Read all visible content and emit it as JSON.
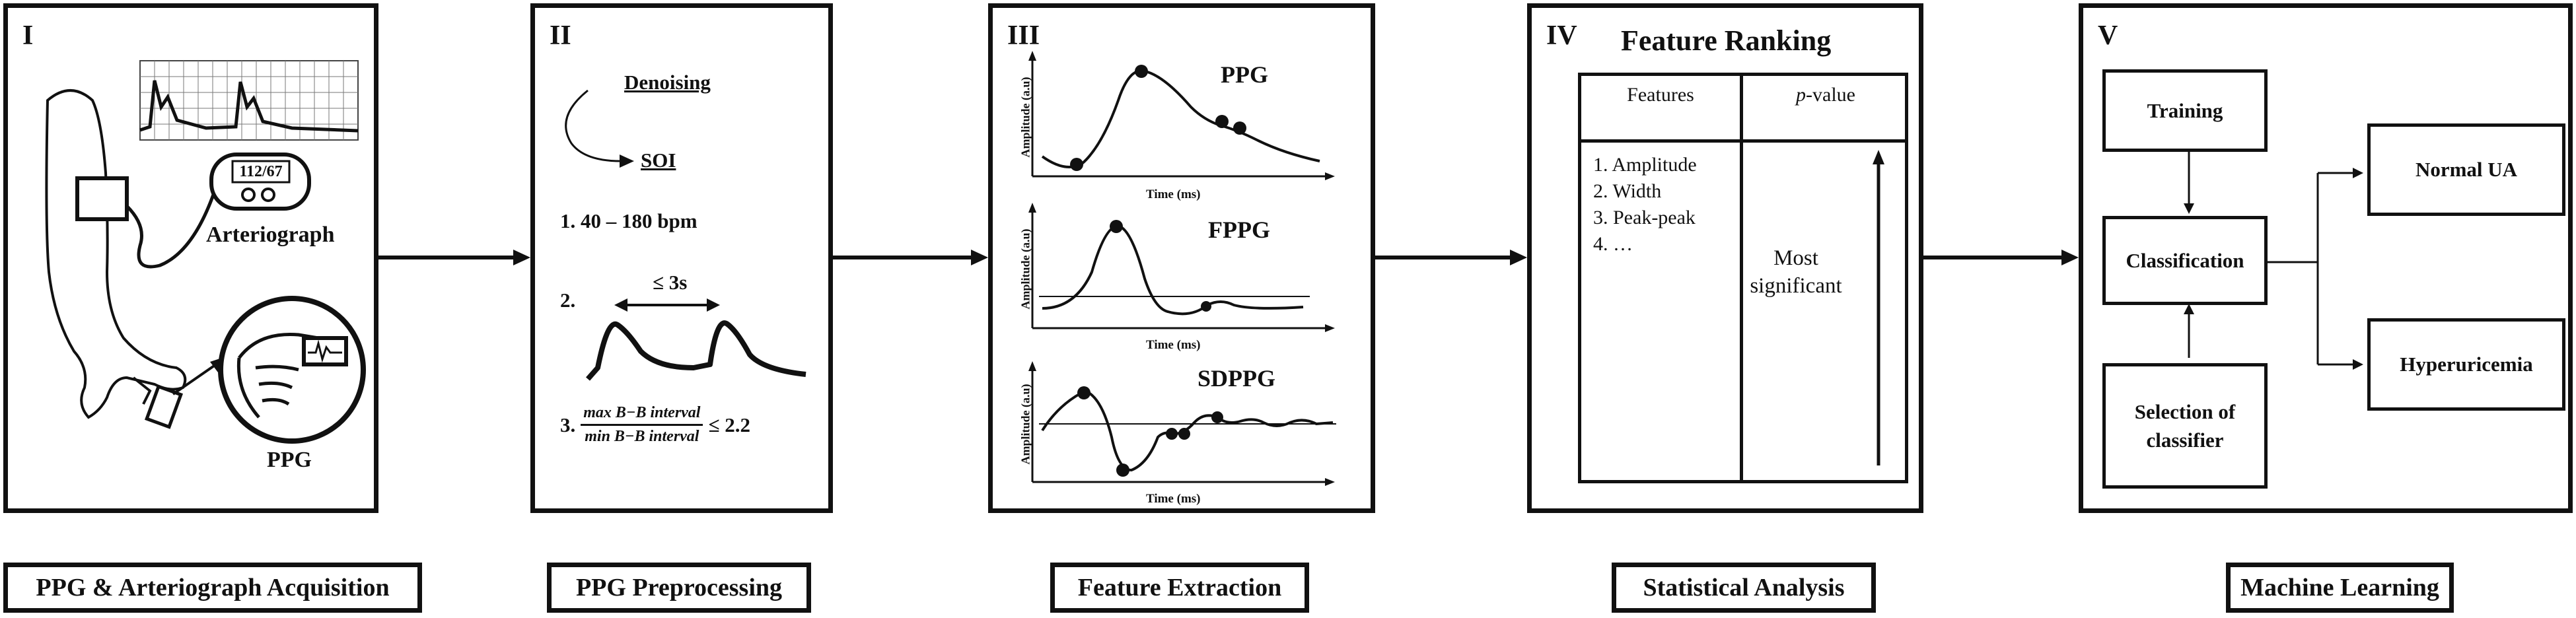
{
  "panels": [
    {
      "numeral": "I",
      "device_readout": "112/67",
      "device_label": "Arteriograph",
      "sensor_label": "PPG",
      "bottom_label": "PPG & Arteriograph Acquisition"
    },
    {
      "numeral": "II",
      "denoising": "Denoising",
      "soi": "SOI",
      "criterion_1": "1. 40 – 180 bpm",
      "criterion_2_num": "2.",
      "criterion_2_label": "≤ 3s",
      "criterion_3_num": "3.",
      "criterion_3_numerator": "max B−B interval",
      "criterion_3_denominator": "min B−B interval",
      "criterion_3_bound": "≤ 2.2",
      "bottom_label": "PPG Preprocessing"
    },
    {
      "numeral": "III",
      "plots": [
        {
          "title": "PPG",
          "ylabel": "Amplitude (a.u)",
          "xlabel": "Time (ms)"
        },
        {
          "title": "FPPG",
          "ylabel": "Amplitude (a.u)",
          "xlabel": "Time (ms)"
        },
        {
          "title": "SDPPG",
          "ylabel": "Amplitude (a.u)",
          "xlabel": "Time (ms)"
        }
      ],
      "bottom_label": "Feature Extraction"
    },
    {
      "numeral": "IV",
      "title": "Feature Ranking",
      "table": {
        "col_features": "Features",
        "col_pvalue_italic": "p",
        "col_pvalue_rest": "-value",
        "features": [
          "1. Amplitude",
          "2. Width",
          "3. Peak-peak",
          "4. …"
        ],
        "significance": [
          "Most",
          "significant"
        ]
      },
      "bottom_label": "Statistical Analysis"
    },
    {
      "numeral": "V",
      "boxes": {
        "training": "Training",
        "classification": "Classification",
        "selection": [
          "Selection of",
          "classifier"
        ],
        "normal": "Normal UA",
        "hyper": "Hyperuricemia"
      },
      "bottom_label": "Machine Learning"
    }
  ],
  "colors": {
    "ink": "#111111",
    "background": "#ffffff",
    "grid": "#555555"
  }
}
